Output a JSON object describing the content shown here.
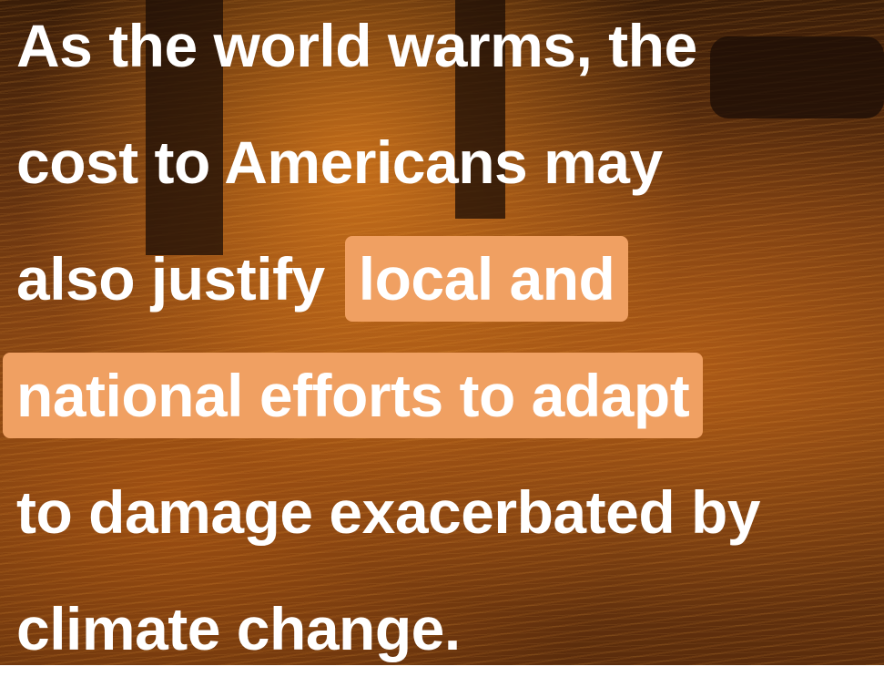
{
  "lines": [
    {
      "segments": [
        {
          "text": "As the world warms, the",
          "highlight": false
        }
      ]
    },
    {
      "segments": [
        {
          "text": "cost to Americans may",
          "highlight": false
        }
      ]
    },
    {
      "segments": [
        {
          "text": "also justify",
          "highlight": false
        },
        {
          "text": "local and",
          "highlight": true
        }
      ]
    },
    {
      "segments": [
        {
          "text": "national efforts to adapt",
          "highlight": true
        }
      ]
    },
    {
      "segments": [
        {
          "text": "to damage exacerbated by",
          "highlight": false
        }
      ]
    },
    {
      "segments": [
        {
          "text": "climate change.",
          "highlight": false
        }
      ]
    }
  ]
}
